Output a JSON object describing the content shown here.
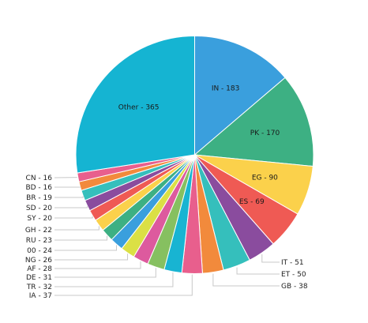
{
  "chart_data": {
    "type": "pie",
    "slices": [
      {
        "label": "IN",
        "value": 183,
        "color": "#3a9fdd"
      },
      {
        "label": "PK",
        "value": 170,
        "color": "#3db083"
      },
      {
        "label": "EG",
        "value": 90,
        "color": "#fbd14b"
      },
      {
        "label": "ES",
        "value": 69,
        "color": "#ef5a54"
      },
      {
        "label": "IT",
        "value": 51,
        "color": "#8a4c9e"
      },
      {
        "label": "ET",
        "value": 50,
        "color": "#35bfbc"
      },
      {
        "label": "GB",
        "value": 38,
        "color": "#f28a3c"
      },
      {
        "label": "IA",
        "value": 37,
        "color": "#e85f8d"
      },
      {
        "label": "TR",
        "value": 32,
        "color": "#18b4d2"
      },
      {
        "label": "DE",
        "value": 31,
        "color": "#86c060"
      },
      {
        "label": "AF",
        "value": 28,
        "color": "#dd5a9e"
      },
      {
        "label": "NG",
        "value": 26,
        "color": "#dbe045"
      },
      {
        "label": "00",
        "value": 24,
        "color": "#3a9fdd"
      },
      {
        "label": "RU",
        "value": 23,
        "color": "#3db083"
      },
      {
        "label": "GH",
        "value": 22,
        "color": "#fbd14b"
      },
      {
        "label": "SY",
        "value": 20,
        "color": "#ef5a54"
      },
      {
        "label": "SD",
        "value": 20,
        "color": "#8a4c9e"
      },
      {
        "label": "BR",
        "value": 19,
        "color": "#35bfbc"
      },
      {
        "label": "BD",
        "value": 16,
        "color": "#f28a3c"
      },
      {
        "label": "CN",
        "value": 16,
        "color": "#e85f8d"
      },
      {
        "label": "Other",
        "value": 365,
        "color": "#15b4d2"
      }
    ],
    "title": "",
    "legend": "none"
  }
}
